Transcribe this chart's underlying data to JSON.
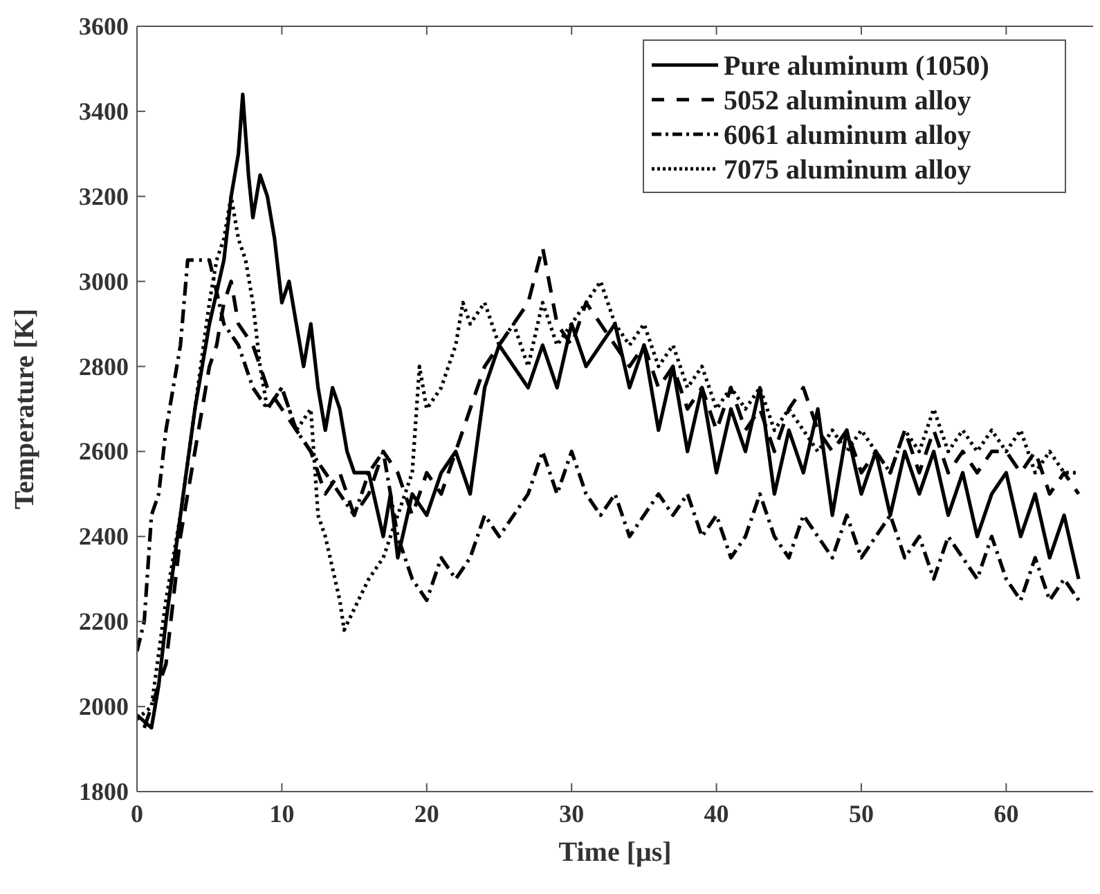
{
  "chart_data": {
    "type": "line",
    "xlabel": "Time [μs]",
    "ylabel": "Temperature [K]",
    "xlim": [
      0,
      66
    ],
    "ylim": [
      1800,
      3600
    ],
    "xticks": [
      0,
      10,
      20,
      30,
      40,
      50,
      60
    ],
    "yticks": [
      1800,
      2000,
      2200,
      2400,
      2600,
      2800,
      3000,
      3200,
      3400,
      3600
    ],
    "grid": false,
    "legend": "top right",
    "marker": "none",
    "series": [
      {
        "name": "Pure aluminum (1050)",
        "color": "#000000",
        "line_style": "solid",
        "x": [
          0,
          1,
          1.5,
          2,
          3,
          4,
          5,
          6,
          6.5,
          7,
          7.3,
          7.7,
          8,
          8.5,
          9,
          9.5,
          10,
          10.5,
          11,
          11.5,
          12,
          12.5,
          13,
          13.5,
          14,
          14.5,
          15,
          16,
          17,
          17.5,
          18,
          19,
          20,
          21,
          22,
          23,
          24,
          25,
          26,
          27,
          28,
          29,
          30,
          31,
          32,
          33,
          34,
          35,
          36,
          37,
          38,
          39,
          40,
          41,
          42,
          43,
          44,
          45,
          46,
          47,
          48,
          49,
          50,
          51,
          52,
          53,
          54,
          55,
          56,
          57,
          58,
          59,
          60,
          61,
          62,
          63,
          64,
          65
        ],
        "values": [
          1980,
          1950,
          2050,
          2200,
          2450,
          2700,
          2900,
          3050,
          3200,
          3300,
          3440,
          3250,
          3150,
          3250,
          3200,
          3100,
          2950,
          3000,
          2900,
          2800,
          2900,
          2750,
          2650,
          2750,
          2700,
          2600,
          2550,
          2550,
          2400,
          2500,
          2350,
          2500,
          2450,
          2550,
          2600,
          2500,
          2750,
          2850,
          2800,
          2750,
          2850,
          2750,
          2900,
          2800,
          2850,
          2900,
          2750,
          2850,
          2650,
          2800,
          2600,
          2750,
          2550,
          2700,
          2600,
          2750,
          2500,
          2650,
          2550,
          2700,
          2450,
          2650,
          2500,
          2600,
          2450,
          2600,
          2500,
          2600,
          2450,
          2550,
          2400,
          2500,
          2550,
          2400,
          2500,
          2350,
          2450,
          2300
        ]
      },
      {
        "name": "5052 aluminum alloy",
        "color": "#000000",
        "line_style": "dashed",
        "x": [
          0.5,
          1,
          2,
          3,
          4,
          5,
          5.5,
          6,
          6.5,
          7,
          8,
          9,
          10,
          11,
          12,
          13,
          14,
          15,
          16,
          17,
          18,
          19,
          20,
          21,
          22,
          23,
          24,
          25,
          26,
          27,
          28,
          29,
          30,
          31,
          32,
          33,
          34,
          35,
          36,
          37,
          38,
          39,
          40,
          41,
          42,
          43,
          44,
          45,
          46,
          47,
          48,
          49,
          50,
          51,
          52,
          53,
          54,
          55,
          56,
          57,
          58,
          59,
          60,
          61,
          62,
          63,
          64,
          65
        ],
        "values": [
          1950,
          2000,
          2100,
          2400,
          2600,
          2800,
          2850,
          2950,
          3000,
          2900,
          2850,
          2750,
          2700,
          2650,
          2600,
          2500,
          2550,
          2450,
          2500,
          2600,
          2550,
          2450,
          2550,
          2500,
          2600,
          2700,
          2800,
          2850,
          2900,
          2950,
          3080,
          2900,
          2850,
          2950,
          2900,
          2850,
          2800,
          2850,
          2750,
          2800,
          2700,
          2750,
          2650,
          2750,
          2650,
          2700,
          2600,
          2700,
          2750,
          2650,
          2600,
          2650,
          2550,
          2600,
          2550,
          2650,
          2550,
          2650,
          2550,
          2600,
          2550,
          2600,
          2600,
          2550,
          2600,
          2500,
          2550,
          2500
        ]
      },
      {
        "name": "6061 aluminum alloy",
        "color": "#000000",
        "line_style": "dashdot",
        "x": [
          0,
          0.5,
          1,
          1.5,
          2,
          3,
          3.5,
          4,
          5,
          6,
          7,
          8,
          9,
          10,
          11,
          12,
          13,
          14,
          15,
          16,
          17,
          18,
          19,
          20,
          21,
          22,
          23,
          24,
          25,
          26,
          27,
          28,
          29,
          30,
          31,
          32,
          33,
          34,
          35,
          36,
          37,
          38,
          39,
          40,
          41,
          42,
          43,
          44,
          45,
          46,
          47,
          48,
          49,
          50,
          51,
          52,
          53,
          54,
          55,
          56,
          57,
          58,
          59,
          60,
          61,
          62,
          63,
          64,
          65
        ],
        "values": [
          2130,
          2200,
          2450,
          2500,
          2650,
          2850,
          3050,
          3050,
          3050,
          2900,
          2850,
          2750,
          2700,
          2750,
          2650,
          2600,
          2550,
          2500,
          2450,
          2550,
          2600,
          2400,
          2300,
          2250,
          2350,
          2300,
          2350,
          2450,
          2400,
          2450,
          2500,
          2600,
          2500,
          2600,
          2500,
          2450,
          2500,
          2400,
          2450,
          2500,
          2450,
          2500,
          2400,
          2450,
          2350,
          2400,
          2500,
          2400,
          2350,
          2450,
          2400,
          2350,
          2450,
          2350,
          2400,
          2450,
          2350,
          2400,
          2300,
          2400,
          2350,
          2300,
          2400,
          2300,
          2250,
          2350,
          2250,
          2300,
          2250
        ]
      },
      {
        "name": "7075 aluminum alloy",
        "color": "#000000",
        "line_style": "dotted",
        "x": [
          0,
          1,
          2,
          3,
          4,
          5,
          5.5,
          6,
          6.5,
          7,
          7.5,
          8,
          8.5,
          9,
          10,
          11,
          12,
          12.5,
          13,
          14,
          14.3,
          15,
          16,
          17,
          18,
          19,
          19.5,
          20,
          21,
          22,
          22.5,
          23,
          24,
          25,
          26,
          27,
          28,
          29,
          30,
          31,
          32,
          33,
          34,
          35,
          36,
          37,
          38,
          39,
          40,
          41,
          42,
          43,
          44,
          45,
          46,
          47,
          48,
          49,
          50,
          51,
          52,
          53,
          54,
          55,
          56,
          57,
          58,
          59,
          60,
          61,
          62,
          63,
          64,
          65
        ],
        "values": [
          1970,
          2000,
          2250,
          2450,
          2700,
          2950,
          3050,
          3100,
          3200,
          3100,
          3050,
          2950,
          2800,
          2700,
          2750,
          2650,
          2700,
          2450,
          2400,
          2250,
          2180,
          2230,
          2300,
          2350,
          2450,
          2550,
          2800,
          2700,
          2750,
          2850,
          2950,
          2900,
          2950,
          2850,
          2900,
          2800,
          2950,
          2850,
          2900,
          2950,
          3000,
          2900,
          2850,
          2900,
          2800,
          2850,
          2750,
          2800,
          2700,
          2750,
          2700,
          2750,
          2650,
          2700,
          2650,
          2600,
          2650,
          2600,
          2650,
          2600,
          2550,
          2650,
          2600,
          2700,
          2600,
          2650,
          2600,
          2650,
          2600,
          2650,
          2550,
          2600,
          2550,
          2550
        ]
      }
    ]
  }
}
